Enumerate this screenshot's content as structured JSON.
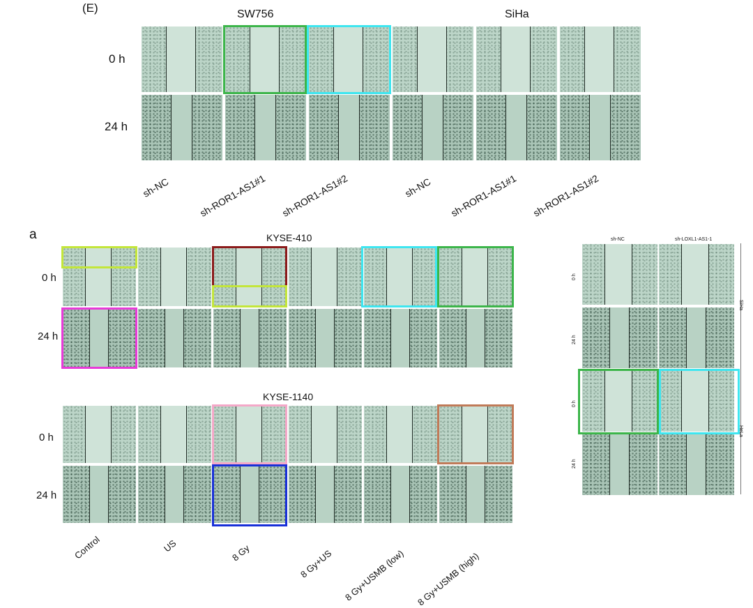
{
  "panel_e": {
    "letter": "(E)",
    "group_labels": [
      "SW756",
      "SiHa"
    ],
    "row_labels": [
      "0 h",
      "24 h"
    ],
    "col_labels": [
      "sh-NC",
      "sh-ROR1-AS1#1",
      "sh-ROR1-AS1#2",
      "sh-NC",
      "sh-ROR1-AS1#1",
      "sh-ROR1-AS1#2"
    ]
  },
  "panel_a": {
    "letter": "a",
    "group_labels": [
      "KYSE-410",
      "KYSE-1140"
    ],
    "row_labels": [
      "0 h",
      "24 h"
    ],
    "col_labels": [
      "Control",
      "US",
      "8 Gy",
      "8 Gy+US",
      "8 Gy+USMB (low)",
      "8 Gy+USMB (high)"
    ]
  },
  "panel_right": {
    "col_labels": [
      "sh-NC",
      "sh-LOXL1-AS1-1"
    ],
    "row_labels": [
      "0 h",
      "24 h",
      "0 h",
      "24 h"
    ],
    "side_labels": [
      "SiHa",
      "HeLa"
    ]
  },
  "highlight_colors": {
    "green": "#3cb54a",
    "cyan": "#3ee6f0",
    "lime": "#c3e63a",
    "dark_red": "#8b1a1a",
    "magenta": "#e83ad8",
    "pink": "#f4a8c8",
    "brown": "#c07a58",
    "blue": "#1830d8"
  }
}
